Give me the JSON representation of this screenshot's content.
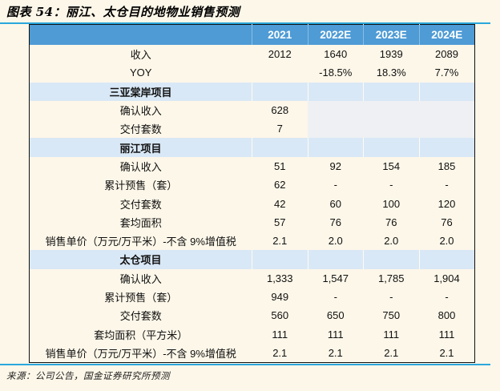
{
  "figure": {
    "title": "图表 54：丽江、太仓目的地物业销售预测",
    "source_note": "来源：公司公告，国金证券研究所预测"
  },
  "colors": {
    "page_background": "#fdf7e9",
    "header_blue": "#4e9bd5",
    "section_row_blue": "#d9e8f6",
    "empty_cell_gray": "#eef0f3",
    "accent_rule_cyan": "#2aa7dc",
    "table_border": "#111111",
    "header_text": "#ffffff"
  },
  "chart_data": {
    "type": "table",
    "title": "图表 54：丽江、太仓目的地物业销售预测",
    "columns": [
      "2021",
      "2022E",
      "2023E",
      "2024E"
    ],
    "rows": [
      {
        "type": "data",
        "label": "收入",
        "values": [
          "2012",
          "1640",
          "1939",
          "2089"
        ]
      },
      {
        "type": "data",
        "label": "YOY",
        "values": [
          "",
          "-18.5%",
          "18.3%",
          "7.7%"
        ]
      },
      {
        "type": "section",
        "label": "三亚棠岸项目",
        "values": [
          "",
          "",
          "",
          ""
        ]
      },
      {
        "type": "data",
        "label": "确认收入",
        "values": [
          "628",
          "",
          "",
          ""
        ],
        "gray_cols": [
          1,
          2,
          3
        ]
      },
      {
        "type": "data",
        "label": "交付套数",
        "values": [
          "7",
          "",
          "",
          ""
        ],
        "gray_cols": [
          1,
          2,
          3
        ]
      },
      {
        "type": "section",
        "label": "丽江项目",
        "values": [
          "",
          "",
          "",
          ""
        ]
      },
      {
        "type": "data",
        "label": "确认收入",
        "values": [
          "51",
          "92",
          "154",
          "185"
        ]
      },
      {
        "type": "data",
        "label": "累计预售（套）",
        "values": [
          "62",
          "-",
          "-",
          "-"
        ]
      },
      {
        "type": "data",
        "label": "交付套数",
        "values": [
          "42",
          "60",
          "100",
          "120"
        ]
      },
      {
        "type": "data",
        "label": "套均面积",
        "values": [
          "57",
          "76",
          "76",
          "76"
        ]
      },
      {
        "type": "data",
        "label": "销售单价（万元/万平米）-不含 9%增值税",
        "values": [
          "2.1",
          "2.0",
          "2.0",
          "2.0"
        ]
      },
      {
        "type": "section",
        "label": "太仓项目",
        "values": [
          "",
          "",
          "",
          ""
        ]
      },
      {
        "type": "data",
        "label": "确认收入",
        "values": [
          "1,333",
          "1,547",
          "1,785",
          "1,904"
        ]
      },
      {
        "type": "data",
        "label": "累计预售（套）",
        "values": [
          "949",
          "-",
          "-",
          "-"
        ]
      },
      {
        "type": "data",
        "label": "交付套数",
        "values": [
          "560",
          "650",
          "750",
          "800"
        ]
      },
      {
        "type": "data",
        "label": "套均面积（平方米）",
        "values": [
          "111",
          "111",
          "111",
          "111"
        ]
      },
      {
        "type": "data",
        "label": "销售单价（万元/万平米）-不含 9%增值税",
        "values": [
          "2.1",
          "2.1",
          "2.1",
          "2.1"
        ]
      }
    ]
  }
}
